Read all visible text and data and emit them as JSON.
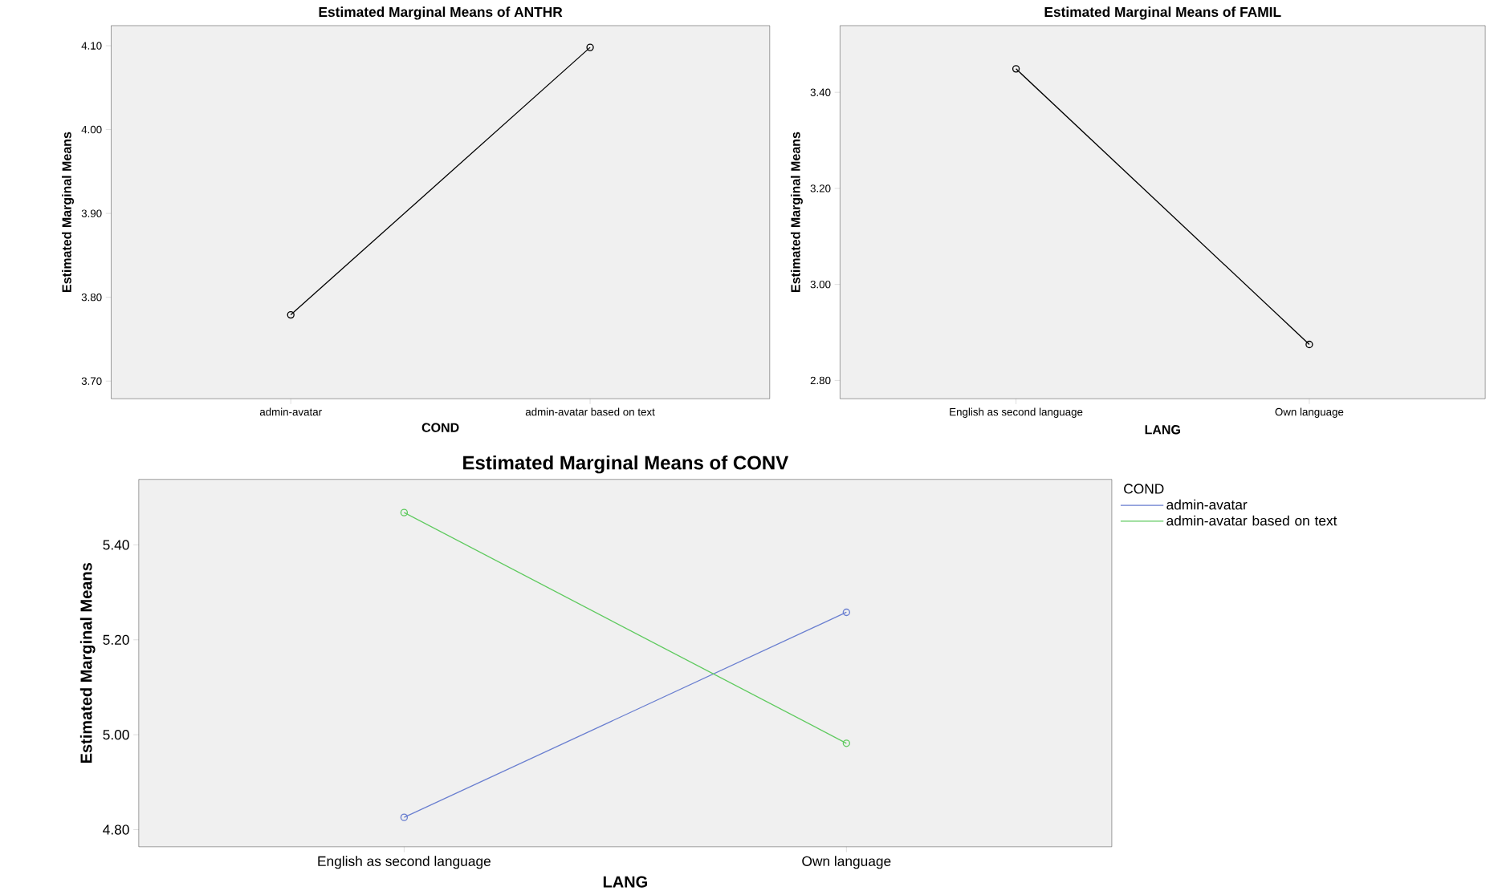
{
  "chart_data": [
    {
      "type": "line",
      "title": "Estimated Marginal Means of ANTHR",
      "xlabel": "COND",
      "ylabel": "Estimated Marginal Means",
      "categories": [
        "admin-avatar",
        "admin-avatar based on text"
      ],
      "series": [
        {
          "color": "#000000",
          "values": [
            3.779,
            4.098
          ]
        }
      ],
      "ylim": [
        3.679,
        4.124
      ],
      "yticks": [
        {
          "value": 3.7,
          "label": "3.70"
        },
        {
          "value": 3.8,
          "label": "3.80"
        },
        {
          "value": 3.9,
          "label": "3.90"
        },
        {
          "value": 4.0,
          "label": "4.00"
        },
        {
          "value": 4.1,
          "label": "4.10"
        }
      ],
      "marker": "circle",
      "grid": false,
      "legend": false
    },
    {
      "type": "line",
      "title": "Estimated Marginal Means of FAMIL",
      "xlabel": "LANG",
      "ylabel": "Estimated Marginal Means",
      "categories": [
        "English as second language",
        "Own language"
      ],
      "series": [
        {
          "color": "#000000",
          "values": [
            3.449,
            2.875
          ]
        }
      ],
      "ylim": [
        2.762,
        3.539
      ],
      "yticks": [
        {
          "value": 2.8,
          "label": "2.80"
        },
        {
          "value": 3.0,
          "label": "3.00"
        },
        {
          "value": 3.2,
          "label": "3.20"
        },
        {
          "value": 3.4,
          "label": "3.40"
        }
      ],
      "marker": "circle",
      "grid": false,
      "legend": false
    },
    {
      "type": "line",
      "title": "Estimated Marginal Means of CONV",
      "xlabel": "LANG",
      "ylabel": "Estimated Marginal Means",
      "legend_title": "COND",
      "categories": [
        "English as second language",
        "Own language"
      ],
      "series": [
        {
          "name": "admin-avatar",
          "color": "#6a7fd0",
          "values": [
            4.826,
            5.258
          ]
        },
        {
          "name": "admin-avatar based on text",
          "color": "#5fca5f",
          "values": [
            5.468,
            4.982
          ]
        }
      ],
      "ylim": [
        4.764,
        5.538
      ],
      "yticks": [
        {
          "value": 4.8,
          "label": "4.80"
        },
        {
          "value": 5.0,
          "label": "5.00"
        },
        {
          "value": 5.2,
          "label": "5.20"
        },
        {
          "value": 5.4,
          "label": "5.40"
        }
      ],
      "marker": "circle",
      "grid": false,
      "legend": "top right"
    }
  ]
}
